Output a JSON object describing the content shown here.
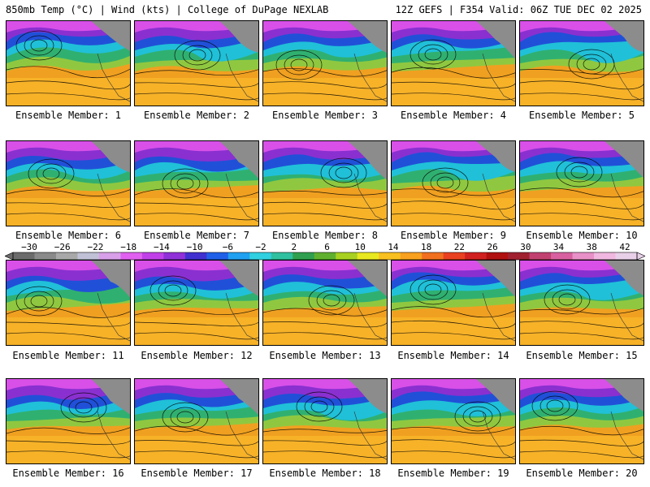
{
  "header": {
    "left": "850mb Temp (°C) | Wind (kts) | College of DuPage NEXLAB",
    "right": "12Z GEFS | F354 Valid: 06Z TUE DEC 02 2025"
  },
  "panels": [
    {
      "label": "Ensemble Member: 1"
    },
    {
      "label": "Ensemble Member: 2"
    },
    {
      "label": "Ensemble Member: 3"
    },
    {
      "label": "Ensemble Member: 4"
    },
    {
      "label": "Ensemble Member: 5"
    },
    {
      "label": "Ensemble Member: 6"
    },
    {
      "label": "Ensemble Member: 7"
    },
    {
      "label": "Ensemble Member: 8"
    },
    {
      "label": "Ensemble Member: 9"
    },
    {
      "label": "Ensemble Member: 10"
    },
    {
      "label": "Ensemble Member: 11"
    },
    {
      "label": "Ensemble Member: 12"
    },
    {
      "label": "Ensemble Member: 13"
    },
    {
      "label": "Ensemble Member: 14"
    },
    {
      "label": "Ensemble Member: 15"
    },
    {
      "label": "Ensemble Member: 16"
    },
    {
      "label": "Ensemble Member: 17"
    },
    {
      "label": "Ensemble Member: 18"
    },
    {
      "label": "Ensemble Member: 19"
    },
    {
      "label": "Ensemble Member: 20"
    }
  ],
  "colorbar": {
    "tick_labels": [
      "−30",
      "−26",
      "−22",
      "−18",
      "−14",
      "−10",
      "−6",
      "−2",
      "2",
      "6",
      "10",
      "14",
      "18",
      "22",
      "26",
      "30",
      "34",
      "38",
      "42"
    ],
    "colors": [
      "#6b6b6b",
      "#8a8a8a",
      "#a8a8a8",
      "#c0c0d6",
      "#d8a0e8",
      "#e060f0",
      "#c040e8",
      "#9030d8",
      "#4030d0",
      "#2060e8",
      "#20a0f0",
      "#30d0e0",
      "#30c0a0",
      "#30a050",
      "#60b030",
      "#a8d020",
      "#e8e820",
      "#f8c020",
      "#f8a020",
      "#f07020",
      "#e84020",
      "#d02020",
      "#b01010",
      "#a02030",
      "#c04070",
      "#d860a0",
      "#e890c8",
      "#f0b8e0",
      "#e8d0e8"
    ]
  }
}
